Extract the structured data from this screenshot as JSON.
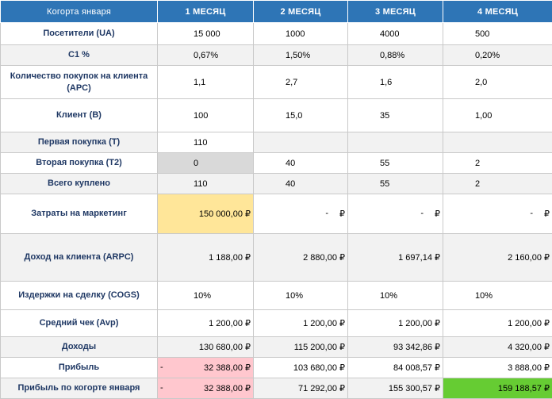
{
  "header": {
    "label": "Когорта января",
    "months": [
      "1 МЕСЯЦ",
      "2 МЕСЯЦ",
      "3 МЕСЯЦ",
      "4 МЕСЯЦ"
    ]
  },
  "rows": {
    "visitors": {
      "label": "Посетители (UA)",
      "values": [
        "15 000",
        "1000",
        "4000",
        "500"
      ]
    },
    "c1": {
      "label": "C1 %",
      "values": [
        "0,67%",
        "1,50%",
        "0,88%",
        "0,20%"
      ]
    },
    "apc": {
      "label": "Количество покупок на клиента (APC)",
      "values": [
        "1,1",
        "2,7",
        "1,6",
        "2,0"
      ]
    },
    "clients": {
      "label": "Клиент (B)",
      "values": [
        "100",
        "15,0",
        "35",
        "1,00"
      ]
    },
    "first": {
      "label": "Первая покупка (T)",
      "values": [
        "110",
        "",
        "",
        ""
      ]
    },
    "second": {
      "label": "Вторая покупка (T2)",
      "values": [
        "0",
        "40",
        "55",
        "2"
      ]
    },
    "total": {
      "label": "Всего куплено",
      "values": [
        "110",
        "40",
        "55",
        "2"
      ]
    },
    "marketing": {
      "label": "Затраты на маркетинг",
      "values": [
        "150 000,00 ₽",
        "-",
        "-",
        "-"
      ],
      "currency": "₽"
    },
    "arpc": {
      "label": "Доход на клиента (ARPC)",
      "values": [
        "1 188,00 ₽",
        "2 880,00 ₽",
        "1 697,14 ₽",
        "2 160,00 ₽"
      ]
    },
    "cogs": {
      "label": "Издержки на сделку (COGS)",
      "values": [
        "10%",
        "10%",
        "10%",
        "10%"
      ]
    },
    "avp": {
      "label": "Средний чек (Avp)",
      "values": [
        "1 200,00 ₽",
        "1 200,00 ₽",
        "1 200,00 ₽",
        "1 200,00 ₽"
      ]
    },
    "income": {
      "label": "Доходы",
      "values": [
        "130 680,00 ₽",
        "115 200,00 ₽",
        "93 342,86 ₽",
        "4 320,00 ₽"
      ]
    },
    "profit": {
      "label": "Прибыль",
      "neg_sign": "-",
      "values": [
        "32 388,00 ₽",
        "103 680,00 ₽",
        "84 008,57 ₽",
        "3 888,00 ₽"
      ]
    },
    "cohort_profit": {
      "label": "Прибыль по когорте января",
      "neg_sign": "-",
      "values": [
        "32 388,00 ₽",
        "71 292,00 ₽",
        "155 300,57 ₽",
        "159 188,57 ₽"
      ]
    }
  },
  "colors": {
    "header_bg": "#2e75b6",
    "label_text": "#1f3864",
    "highlight_yellow": "#ffe699",
    "highlight_pink": "#ffc7ce",
    "highlight_green": "#66cc33",
    "row_gray": "#f2f2f2"
  }
}
